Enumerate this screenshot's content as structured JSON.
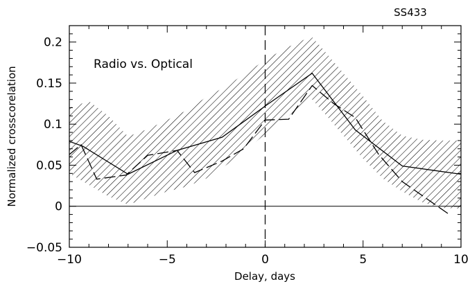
{
  "chart_data": {
    "type": "line",
    "title": "SS433",
    "annotation": "Radio vs. Optical",
    "xlabel": "Delay, days",
    "ylabel": "Normalized crosscorelation",
    "xlim": [
      -10,
      10
    ],
    "ylim": [
      -0.05,
      0.22
    ],
    "xticks": [
      -10,
      -5,
      0,
      5,
      10
    ],
    "xtick_labels": [
      "−10",
      "−5",
      "0",
      "5",
      "10"
    ],
    "yticks": [
      -0.05,
      0,
      0.05,
      0.1,
      0.15,
      0.2
    ],
    "ytick_labels": [
      "−0.05",
      "0",
      "0.05",
      "0.1",
      "0.15",
      "0.2"
    ],
    "grid": false,
    "hlines": [
      0
    ],
    "vlines": [
      0
    ],
    "series": [
      {
        "style": "solid",
        "x": [
          -10,
          -9.3,
          -7,
          -4.5,
          -2.2,
          0,
          2.4,
          4.6,
          7,
          10
        ],
        "y": [
          0.079,
          0.073,
          0.039,
          0.068,
          0.084,
          0.122,
          0.162,
          0.093,
          0.049,
          0.039
        ]
      },
      {
        "style": "dashed",
        "x": [
          -10,
          -9.4,
          -8.6,
          -7.1,
          -6,
          -4.5,
          -3.6,
          -2.2,
          -1.1,
          0,
          1.2,
          2.4,
          3.5,
          4.6,
          5.8,
          7,
          8.2,
          9.4
        ],
        "y": [
          0.063,
          0.075,
          0.033,
          0.038,
          0.062,
          0.068,
          0.041,
          0.055,
          0.07,
          0.105,
          0.106,
          0.147,
          0.125,
          0.108,
          0.063,
          0.03,
          0.01,
          -0.01
        ]
      }
    ],
    "band": {
      "x": [
        -10,
        -9,
        -8,
        -7,
        -6,
        -5,
        -4,
        -3,
        -2,
        -1,
        0,
        1,
        2,
        2.4,
        3,
        4,
        5,
        6,
        7,
        8,
        9,
        10
      ],
      "lower": [
        0.04,
        0.026,
        0.012,
        0.002,
        0.01,
        0.018,
        0.024,
        0.034,
        0.05,
        0.068,
        0.088,
        0.106,
        0.126,
        0.13,
        0.114,
        0.086,
        0.058,
        0.034,
        0.018,
        0.005,
        -0.002,
        -0.003
      ],
      "upper": [
        0.12,
        0.128,
        0.11,
        0.085,
        0.094,
        0.105,
        0.117,
        0.133,
        0.146,
        0.162,
        0.178,
        0.192,
        0.203,
        0.206,
        0.19,
        0.162,
        0.134,
        0.104,
        0.086,
        0.081,
        0.08,
        0.08
      ]
    }
  }
}
